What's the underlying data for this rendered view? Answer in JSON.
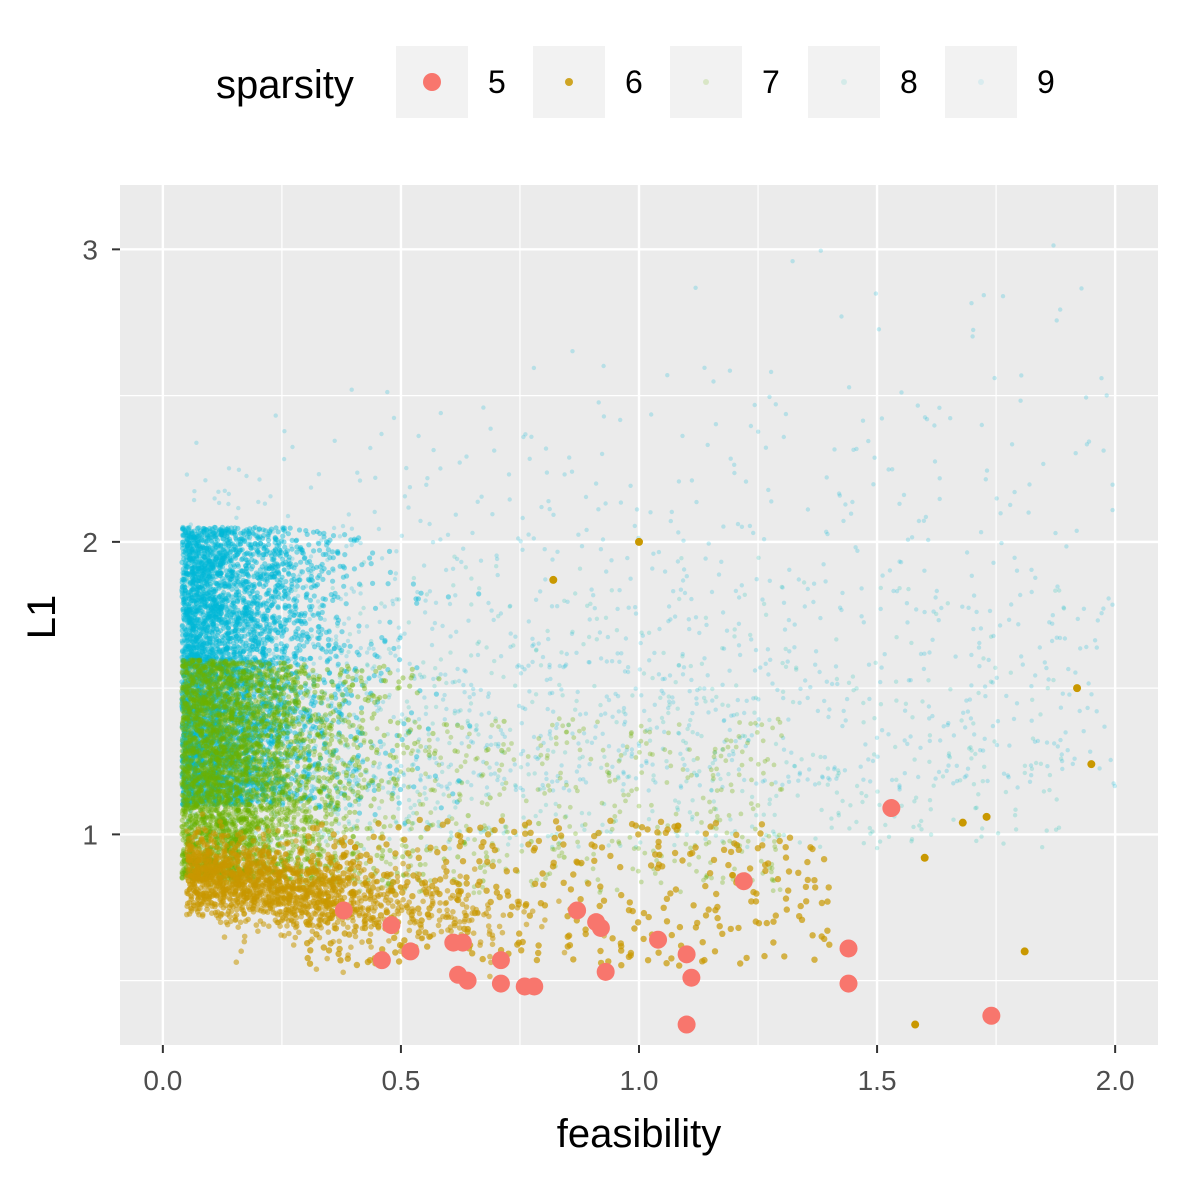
{
  "chart_data": {
    "type": "scatter",
    "xlabel": "feasibility",
    "ylabel": "L1",
    "xlim": [
      -0.09,
      2.09
    ],
    "ylim": [
      0.28,
      3.22
    ],
    "x_ticks": [
      0.0,
      0.5,
      1.0,
      1.5,
      2.0
    ],
    "x_tick_labels": [
      "0.0",
      "0.5",
      "1.0",
      "1.5",
      "2.0"
    ],
    "y_ticks": [
      1,
      2,
      3
    ],
    "y_tick_labels": [
      "1",
      "2",
      "3"
    ],
    "grid": true,
    "legend": {
      "title": "sparsity",
      "position": "top",
      "entries": [
        "5",
        "6",
        "7",
        "8",
        "9"
      ]
    },
    "colors": {
      "5": "#F8766D",
      "6": "#C99800",
      "7": "#6BB100",
      "8": "#00C0AF",
      "9": "#00B8D8"
    },
    "series": [
      {
        "name": "5",
        "x": [
          1.53,
          1.74,
          1.22,
          0.38,
          0.48,
          0.46,
          0.52,
          0.61,
          0.63,
          0.62,
          0.64,
          0.71,
          0.71,
          0.76,
          0.78,
          0.87,
          0.91,
          0.92,
          0.93,
          1.04,
          1.1,
          1.11,
          1.1,
          1.44,
          1.44
        ],
        "y": [
          1.09,
          0.38,
          0.84,
          0.74,
          0.69,
          0.57,
          0.6,
          0.63,
          0.63,
          0.52,
          0.5,
          0.57,
          0.49,
          0.48,
          0.48,
          0.74,
          0.7,
          0.68,
          0.53,
          0.64,
          0.59,
          0.51,
          0.35,
          0.61,
          0.49
        ]
      },
      {
        "name": "6",
        "x": [
          1.92,
          1.0,
          0.82,
          1.58,
          1.73,
          1.95,
          1.6,
          1.68,
          1.81
        ],
        "y": [
          1.5,
          2.0,
          1.87,
          0.35,
          1.06,
          1.24,
          0.92,
          1.04,
          0.6
        ]
      },
      {
        "name": "7",
        "x": [],
        "y": []
      },
      {
        "name": "8",
        "x": [],
        "y": []
      },
      {
        "name": "9",
        "x": [],
        "y": []
      }
    ]
  }
}
